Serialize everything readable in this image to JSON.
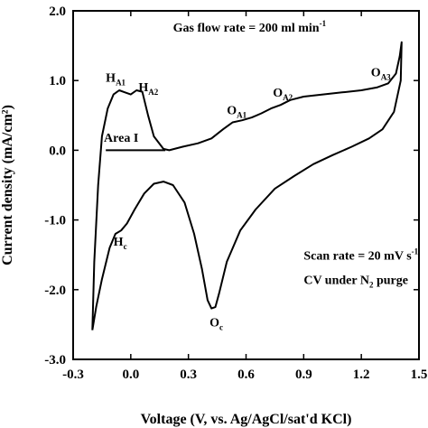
{
  "chart_data": {
    "type": "line",
    "xlabel": "Voltage (V, vs. Ag/AgCl/sat'd KCl)",
    "ylabel": "Current density (mA/cm²)",
    "xlim": [
      -0.3,
      1.5
    ],
    "ylim": [
      -3.0,
      2.0
    ],
    "x_ticks": [
      {
        "v": -0.3,
        "t": "-0.3"
      },
      {
        "v": 0.0,
        "t": "0.0"
      },
      {
        "v": 0.3,
        "t": "0.3"
      },
      {
        "v": 0.6,
        "t": "0.6"
      },
      {
        "v": 0.9,
        "t": "0.9"
      },
      {
        "v": 1.2,
        "t": "1.2"
      },
      {
        "v": 1.5,
        "t": "1.5"
      }
    ],
    "y_ticks": [
      {
        "v": 2.0,
        "t": "2.0"
      },
      {
        "v": 1.0,
        "t": "1.0"
      },
      {
        "v": 0.0,
        "t": "0.0"
      },
      {
        "v": -1.0,
        "t": "-1.0"
      },
      {
        "v": -2.0,
        "t": "-2.0"
      },
      {
        "v": -3.0,
        "t": "-3.0"
      }
    ],
    "grid": false,
    "legend": "none",
    "series": [
      {
        "points": [
          [
            -0.2,
            -2.58
          ],
          [
            -0.19,
            -1.6
          ],
          [
            -0.17,
            -0.5
          ],
          [
            -0.15,
            0.2
          ],
          [
            -0.12,
            0.6
          ],
          [
            -0.09,
            0.8
          ],
          [
            -0.06,
            0.86
          ],
          [
            -0.03,
            0.83
          ],
          [
            0.0,
            0.8
          ],
          [
            0.03,
            0.86
          ],
          [
            0.06,
            0.84
          ],
          [
            0.09,
            0.5
          ],
          [
            0.12,
            0.2
          ],
          [
            0.17,
            0.02
          ],
          [
            0.2,
            0.0
          ],
          [
            0.27,
            0.05
          ],
          [
            0.35,
            0.1
          ],
          [
            0.42,
            0.17
          ],
          [
            0.48,
            0.3
          ],
          [
            0.53,
            0.4
          ],
          [
            0.58,
            0.43
          ],
          [
            0.63,
            0.47
          ],
          [
            0.68,
            0.53
          ],
          [
            0.73,
            0.6
          ],
          [
            0.78,
            0.65
          ],
          [
            0.83,
            0.72
          ],
          [
            0.9,
            0.77
          ],
          [
            1.0,
            0.8
          ],
          [
            1.1,
            0.83
          ],
          [
            1.2,
            0.86
          ],
          [
            1.28,
            0.9
          ],
          [
            1.34,
            0.96
          ],
          [
            1.38,
            1.1
          ],
          [
            1.4,
            1.35
          ],
          [
            1.41,
            1.55
          ],
          [
            1.405,
            1.0
          ],
          [
            1.37,
            0.55
          ],
          [
            1.31,
            0.3
          ],
          [
            1.24,
            0.17
          ],
          [
            1.15,
            0.05
          ],
          [
            1.05,
            -0.07
          ],
          [
            0.95,
            -0.2
          ],
          [
            0.85,
            -0.37
          ],
          [
            0.75,
            -0.55
          ],
          [
            0.65,
            -0.85
          ],
          [
            0.57,
            -1.15
          ],
          [
            0.5,
            -1.6
          ],
          [
            0.46,
            -2.05
          ],
          [
            0.44,
            -2.25
          ],
          [
            0.42,
            -2.27
          ],
          [
            0.4,
            -2.15
          ],
          [
            0.37,
            -1.7
          ],
          [
            0.33,
            -1.2
          ],
          [
            0.28,
            -0.75
          ],
          [
            0.22,
            -0.5
          ],
          [
            0.17,
            -0.45
          ],
          [
            0.12,
            -0.48
          ],
          [
            0.07,
            -0.62
          ],
          [
            0.02,
            -0.85
          ],
          [
            -0.02,
            -1.05
          ],
          [
            -0.05,
            -1.15
          ],
          [
            -0.08,
            -1.2
          ],
          [
            -0.11,
            -1.4
          ],
          [
            -0.15,
            -1.85
          ],
          [
            -0.18,
            -2.25
          ],
          [
            -0.2,
            -2.58
          ]
        ]
      }
    ],
    "area_line": [
      [
        -0.13,
        0.0
      ],
      [
        0.18,
        0.0
      ]
    ],
    "annotations": [
      {
        "id": "HA1",
        "main": "H",
        "sub": "A1",
        "x": -0.13,
        "y": 0.98
      },
      {
        "id": "HA2",
        "main": "H",
        "sub": "A2",
        "x": 0.04,
        "y": 0.85
      },
      {
        "id": "AreaI",
        "main": "Area I",
        "sub": "",
        "x": -0.14,
        "y": 0.12
      },
      {
        "id": "OA1",
        "main": "O",
        "sub": "A1",
        "x": 0.5,
        "y": 0.52
      },
      {
        "id": "OA2",
        "main": "O",
        "sub": "A2",
        "x": 0.74,
        "y": 0.77
      },
      {
        "id": "OA3",
        "main": "O",
        "sub": "A3",
        "x": 1.25,
        "y": 1.06
      },
      {
        "id": "Hc",
        "main": "H",
        "sub": "c",
        "x": -0.09,
        "y": -1.37
      },
      {
        "id": "Oc",
        "main": "O",
        "sub": "c",
        "x": 0.41,
        "y": -2.53
      }
    ],
    "notes": [
      {
        "id": "gas",
        "parts": [
          {
            "t": "Gas flow rate = 200 ml min"
          },
          {
            "t": "-1",
            "k": "sup"
          }
        ],
        "x": 0.22,
        "y": 1.7
      },
      {
        "id": "scan",
        "parts": [
          {
            "t": "Scan rate = 20 mV s"
          },
          {
            "t": "-1",
            "k": "sup"
          }
        ],
        "x": 0.9,
        "y": -1.57
      },
      {
        "id": "cv",
        "parts": [
          {
            "t": "CV under N"
          },
          {
            "t": "2",
            "k": "sub"
          },
          {
            "t": " purge"
          }
        ],
        "x": 0.9,
        "y": -1.92
      }
    ]
  }
}
